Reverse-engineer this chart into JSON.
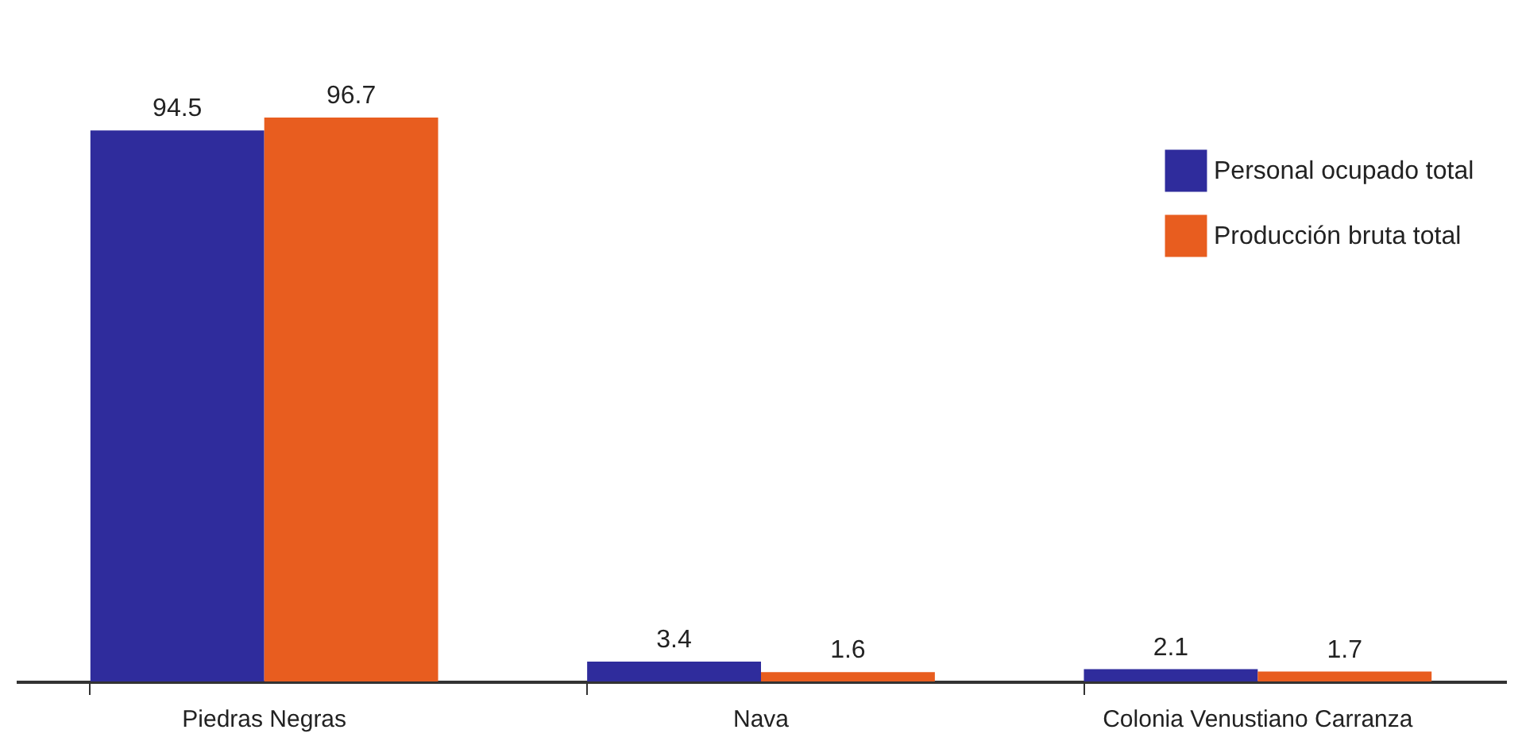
{
  "chart_data": {
    "type": "bar",
    "categories": [
      "Piedras Negras",
      "Nava",
      "Colonia Venustiano Carranza"
    ],
    "series": [
      {
        "name": "Personal ocupado total",
        "color": "#2f2c9c",
        "values": [
          94.5,
          3.4,
          2.1
        ]
      },
      {
        "name": "Producción bruta total",
        "color": "#e85d1f",
        "values": [
          96.7,
          1.6,
          1.7
        ]
      }
    ],
    "data_labels": true,
    "legend": "top right",
    "grid": false
  }
}
